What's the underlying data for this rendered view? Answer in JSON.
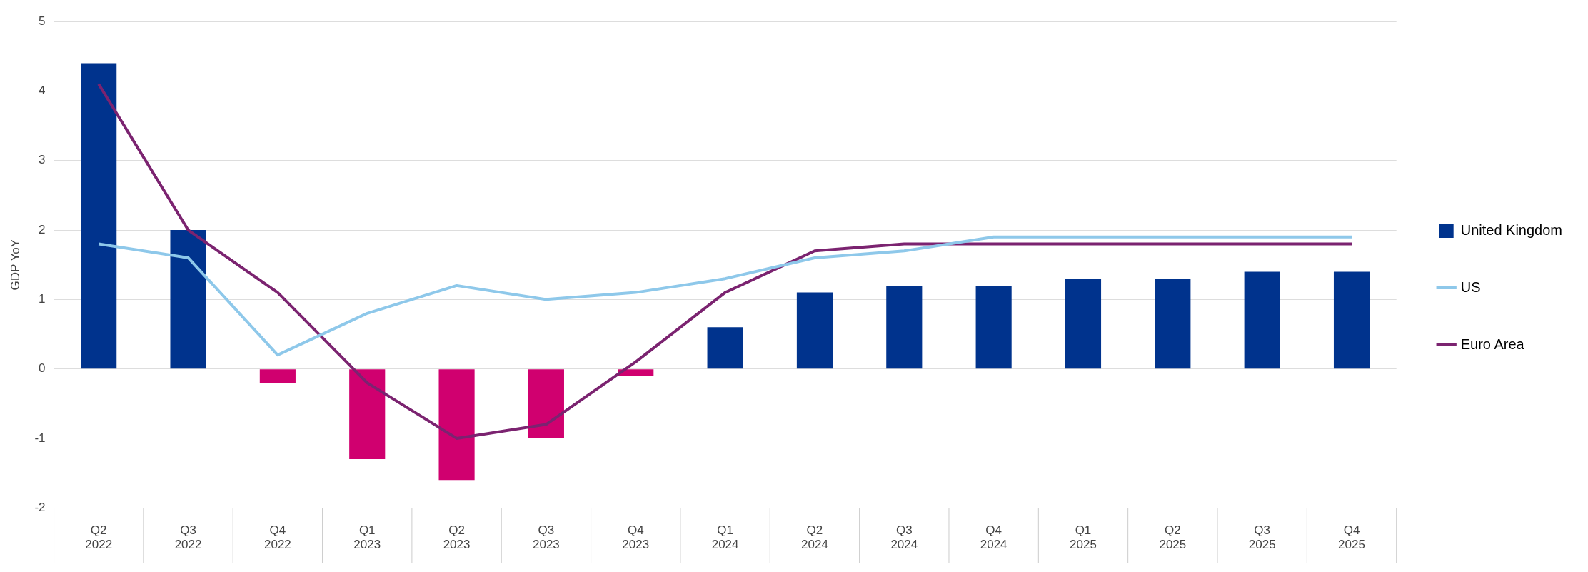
{
  "chart_data": {
    "type": "bar",
    "ylabel": "GDP YoY",
    "categories": [
      "Q2 2022",
      "Q3 2022",
      "Q4 2022",
      "Q1 2023",
      "Q2 2023",
      "Q3 2023",
      "Q4 2023",
      "Q1 2024",
      "Q2 2024",
      "Q3 2024",
      "Q4 2024",
      "Q1 2025",
      "Q2 2025",
      "Q3 2025",
      "Q4 2025"
    ],
    "series": [
      {
        "name": "United Kingdom",
        "color": "#00338d",
        "colors": [
          "#00338d",
          "#00338d",
          "#d0006f",
          "#d0006f",
          "#d0006f",
          "#d0006f",
          "#d0006f",
          "#00338d",
          "#00338d",
          "#00338d",
          "#00338d",
          "#00338d",
          "#00338d",
          "#00338d",
          "#00338d"
        ],
        "values": [
          4.4,
          2.0,
          -0.2,
          -1.3,
          -1.6,
          -1.0,
          -0.1,
          0.6,
          1.1,
          1.2,
          1.2,
          1.3,
          1.3,
          1.4,
          1.4
        ]
      },
      {
        "name": "US",
        "type": "line",
        "color": "#8ec8ea",
        "values": [
          1.8,
          1.6,
          0.2,
          0.8,
          1.2,
          1.0,
          1.1,
          1.3,
          1.6,
          1.7,
          1.9,
          1.9,
          1.9,
          1.9,
          1.9
        ]
      },
      {
        "name": "Euro Area",
        "type": "line",
        "color": "#7b2370",
        "values": [
          4.1,
          2.0,
          1.1,
          -0.2,
          -1.0,
          -0.8,
          0.1,
          1.1,
          1.7,
          1.8,
          1.8,
          1.8,
          1.8,
          1.8,
          1.8
        ]
      }
    ],
    "ylim": [
      -2,
      5
    ],
    "yticks": [
      -2,
      -1,
      0,
      1,
      2,
      3,
      4,
      5
    ],
    "grid": "y",
    "legend": "right",
    "marker": "none",
    "line_style": "solid"
  }
}
